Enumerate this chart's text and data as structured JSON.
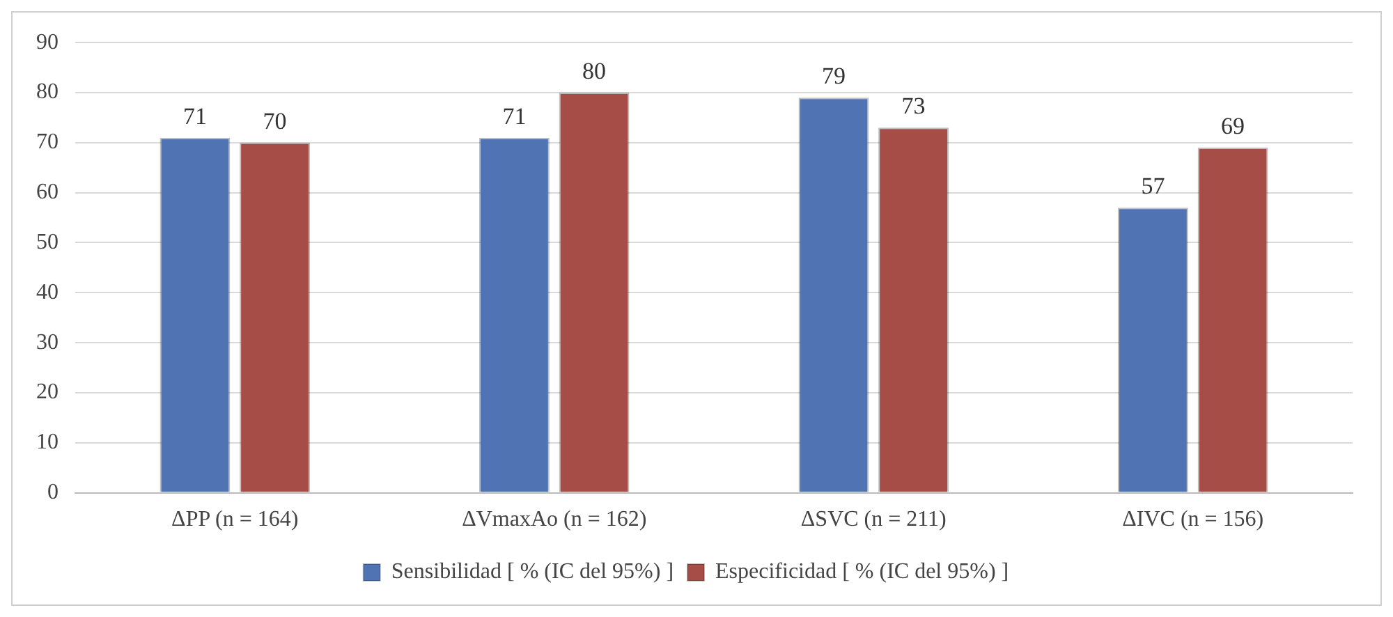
{
  "chart_data": {
    "type": "bar",
    "categories": [
      "ΔPP (n = 164)",
      "ΔVmaxAo (n = 162)",
      "ΔSVC (n = 211)",
      "ΔIVC (n = 156)"
    ],
    "series": [
      {
        "name": "Sensibilidad [ % (IC del 95%) ]",
        "color": "#4f73b3",
        "values": [
          71,
          71,
          79,
          57
        ]
      },
      {
        "name": "Especificidad [ % (IC del 95%) ]",
        "color": "#a64d48",
        "values": [
          70,
          80,
          73,
          69
        ]
      }
    ],
    "ylim": [
      0,
      90
    ],
    "yticks": [
      0,
      10,
      20,
      30,
      40,
      50,
      60,
      70,
      80,
      90
    ],
    "grid": "y",
    "legend": "bottom",
    "data_labels": true
  }
}
